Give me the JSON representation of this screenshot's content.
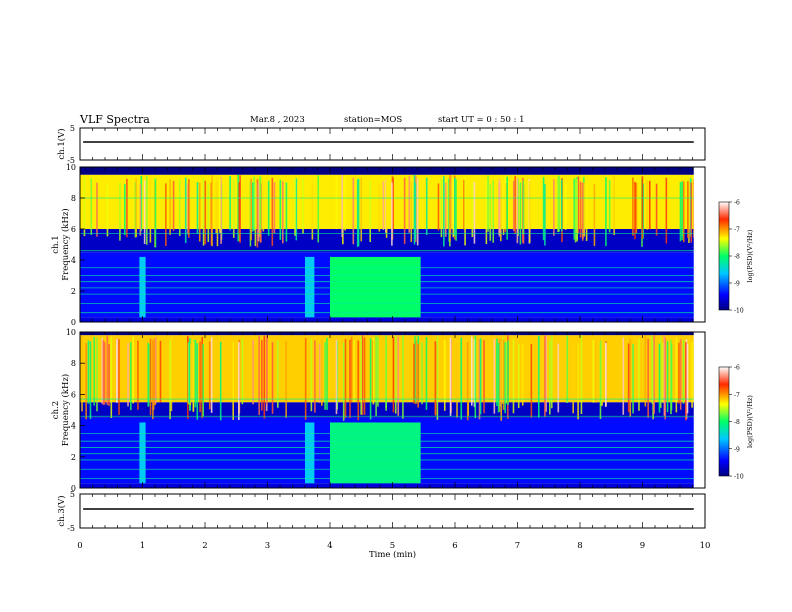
{
  "header": {
    "title": "VLF Spectra",
    "date": "Mar.8 , 2023",
    "station": "station=MOS",
    "start_ut": "start  UT =   0 : 50 : 1"
  },
  "chart_data": [
    {
      "type": "line",
      "panel": "ch1-voltage",
      "ylabel": "ch.1(V)",
      "ylim": [
        -5,
        5
      ],
      "y_ticks": [
        "5",
        "-5"
      ],
      "xlim": [
        0,
        10
      ],
      "series": [
        {
          "x": [
            0.05,
            9.82
          ],
          "y": [
            0,
            0
          ]
        }
      ]
    },
    {
      "type": "heatmap",
      "panel": "ch1-spectrogram",
      "ylabel": "ch.1  Frequency (kHz)",
      "xlim": [
        0,
        10
      ],
      "ylim": [
        0,
        10
      ],
      "y_ticks": [
        "0",
        "2",
        "4",
        "6",
        "8",
        "10"
      ],
      "colorbar": {
        "label": "log(PSD)(V²/Hz)",
        "range": [
          -10,
          -6
        ],
        "ticks": [
          "-6",
          "-7",
          "-8",
          "-9",
          "-10"
        ]
      },
      "bands_khz": [
        {
          "from": 0.3,
          "to": 4.5,
          "log_psd": -9.4
        },
        {
          "from": 4.5,
          "to": 6.0,
          "log_psd": -9.7
        },
        {
          "from": 6.0,
          "to": 9.5,
          "log_psd": -7.3
        },
        {
          "from": 9.5,
          "to": 10.0,
          "log_psd": -10.0
        }
      ],
      "bursts_min": [
        {
          "from": 0.95,
          "to": 1.05,
          "log_psd": -8.6
        },
        {
          "from": 3.6,
          "to": 3.75,
          "log_psd": -8.6
        },
        {
          "from": 4.0,
          "to": 5.45,
          "log_psd": -8.0
        }
      ],
      "tones_khz": [
        0.6,
        1.2,
        1.8,
        2.2,
        2.6,
        3.0,
        3.5,
        4.6,
        5.7,
        8.0
      ]
    },
    {
      "type": "heatmap",
      "panel": "ch2-spectrogram",
      "ylabel": "ch.2  Frequency (kHz)",
      "xlim": [
        0,
        10
      ],
      "ylim": [
        0,
        10
      ],
      "y_ticks": [
        "0",
        "2",
        "4",
        "6",
        "8",
        "10"
      ],
      "colorbar": {
        "label": "log(PSD)(V²/Hz)",
        "range": [
          -10,
          -6
        ],
        "ticks": [
          "-6",
          "-7",
          "-8",
          "-9",
          "-10"
        ]
      },
      "bands_khz": [
        {
          "from": 0.3,
          "to": 4.5,
          "log_psd": -9.4
        },
        {
          "from": 4.5,
          "to": 5.5,
          "log_psd": -9.7
        },
        {
          "from": 5.5,
          "to": 9.8,
          "log_psd": -7.2
        },
        {
          "from": 9.8,
          "to": 10.0,
          "log_psd": -10.0
        }
      ],
      "bursts_min": [
        {
          "from": 0.95,
          "to": 1.05,
          "log_psd": -8.6
        },
        {
          "from": 3.6,
          "to": 3.75,
          "log_psd": -8.6
        },
        {
          "from": 4.0,
          "to": 5.45,
          "log_psd": -8.1
        }
      ],
      "tones_khz": [
        0.6,
        1.2,
        1.8,
        2.2,
        2.6,
        3.0,
        3.5,
        4.6,
        5.7
      ]
    },
    {
      "type": "line",
      "panel": "ch3-voltage",
      "ylabel": "ch.3(V)",
      "ylim": [
        -5,
        5
      ],
      "y_ticks": [
        "5",
        "-5"
      ],
      "xlim": [
        0,
        10
      ],
      "xlabel": "Time  (min)",
      "x_ticks": [
        "0",
        "1",
        "2",
        "3",
        "4",
        "5",
        "6",
        "7",
        "8",
        "9",
        "10"
      ],
      "series": [
        {
          "x": [
            0.05,
            9.82
          ],
          "y": [
            0,
            0
          ]
        }
      ]
    }
  ]
}
